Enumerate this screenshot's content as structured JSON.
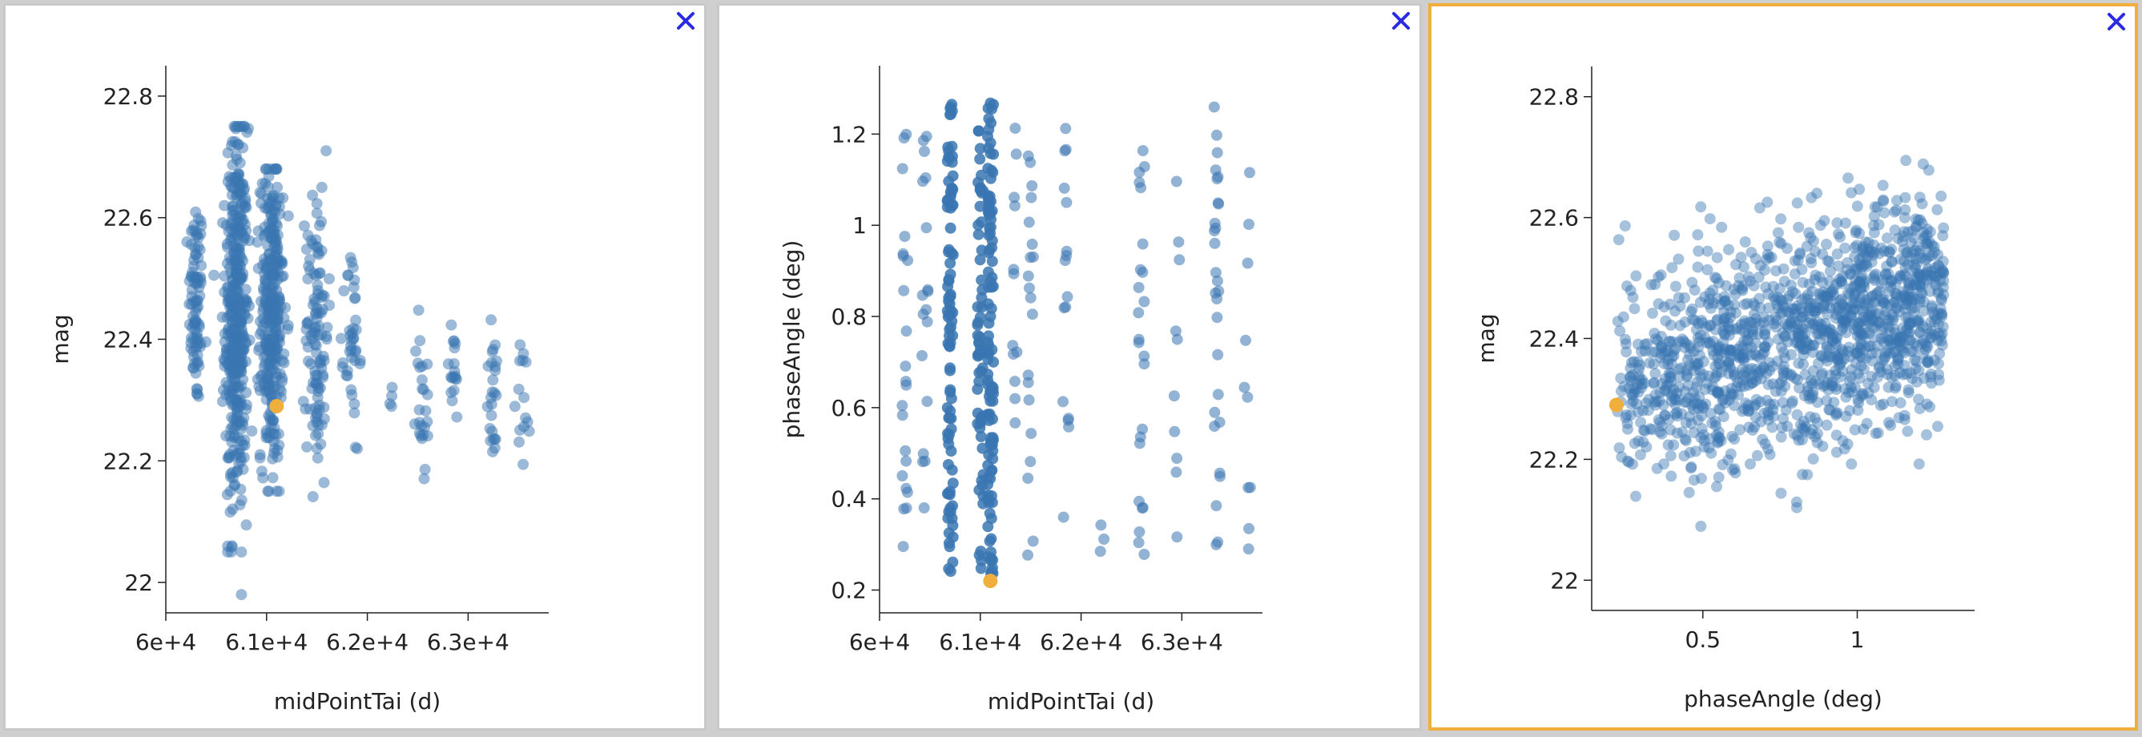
{
  "ui": {
    "close_icon": "close-x-icon",
    "close_color": "#2a2ae0",
    "selected_border_color": "#f0ae3c"
  },
  "chart_data": [
    {
      "type": "scatter",
      "xlabel": "midPointTai (d)",
      "ylabel": "mag",
      "xlim": [
        60000,
        63800
      ],
      "ylim": [
        21.95,
        22.85
      ],
      "xticks": [
        60000,
        61000,
        62000,
        63000
      ],
      "xtick_labels": [
        "6e+4",
        "6.1e+4",
        "6.2e+4",
        "6.3e+4"
      ],
      "yticks": [
        22.0,
        22.2,
        22.4,
        22.6,
        22.8
      ],
      "ytick_labels": [
        "22",
        "22.2",
        "22.4",
        "22.6",
        "22.8"
      ],
      "point_color": "#3a75b2",
      "highlight_color": "#f0ae3c",
      "highlight_point": {
        "x": 61100,
        "y": 22.29
      },
      "clusters": [
        {
          "x": 60300,
          "count": 90,
          "ymin": 22.25,
          "ymax": 22.64,
          "center": 22.46
        },
        {
          "x": 60700,
          "count": 420,
          "ymin": 22.05,
          "ymax": 22.75,
          "center": 22.43
        },
        {
          "x": 60750,
          "count": 6,
          "ymin": 21.98,
          "ymax": 22.79,
          "center": 22.43
        },
        {
          "x": 61050,
          "count": 330,
          "ymin": 22.15,
          "ymax": 22.68,
          "center": 22.44
        },
        {
          "x": 61500,
          "count": 110,
          "ymin": 22.12,
          "ymax": 22.71,
          "center": 22.42
        },
        {
          "x": 61850,
          "count": 40,
          "ymin": 22.22,
          "ymax": 22.59,
          "center": 22.38
        },
        {
          "x": 62200,
          "count": 4,
          "ymin": 22.27,
          "ymax": 22.37,
          "center": 22.31
        },
        {
          "x": 62550,
          "count": 25,
          "ymin": 22.14,
          "ymax": 22.47,
          "center": 22.3
        },
        {
          "x": 62850,
          "count": 18,
          "ymin": 22.24,
          "ymax": 22.44,
          "center": 22.34
        },
        {
          "x": 63250,
          "count": 25,
          "ymin": 22.19,
          "ymax": 22.45,
          "center": 22.31
        },
        {
          "x": 63550,
          "count": 15,
          "ymin": 22.16,
          "ymax": 22.4,
          "center": 22.3
        }
      ]
    },
    {
      "type": "scatter",
      "xlabel": "midPointTai (d)",
      "ylabel": "phaseAngle (deg)",
      "xlim": [
        60000,
        63800
      ],
      "ylim": [
        0.15,
        1.35
      ],
      "xticks": [
        60000,
        61000,
        62000,
        63000
      ],
      "xtick_labels": [
        "6e+4",
        "6.1e+4",
        "6.2e+4",
        "6.3e+4"
      ],
      "yticks": [
        0.2,
        0.4,
        0.6,
        0.8,
        1.0,
        1.2
      ],
      "ytick_labels": [
        "0.2",
        "0.4",
        "0.6",
        "0.8",
        "1",
        "1.2"
      ],
      "point_color": "#3a75b2",
      "highlight_color": "#f0ae3c",
      "highlight_point": {
        "x": 61100,
        "y": 0.22
      },
      "columns": [
        {
          "x": 60250,
          "ymin": 0.28,
          "ymax": 1.23,
          "count": 22
        },
        {
          "x": 60450,
          "ymin": 0.26,
          "ymax": 1.22,
          "count": 18
        },
        {
          "x": 60700,
          "ymin": 0.22,
          "ymax": 1.27,
          "count": 95
        },
        {
          "x": 61000,
          "ymin": 0.22,
          "ymax": 1.27,
          "count": 60
        },
        {
          "x": 61100,
          "ymin": 0.22,
          "ymax": 1.27,
          "count": 110
        },
        {
          "x": 61350,
          "ymin": 0.55,
          "ymax": 1.22,
          "count": 12
        },
        {
          "x": 61500,
          "ymin": 0.26,
          "ymax": 1.2,
          "count": 20
        },
        {
          "x": 61850,
          "ymin": 0.24,
          "ymax": 1.28,
          "count": 16
        },
        {
          "x": 62200,
          "ymin": 0.25,
          "ymax": 0.51,
          "count": 3
        },
        {
          "x": 62600,
          "ymin": 0.24,
          "ymax": 1.29,
          "count": 24
        },
        {
          "x": 62950,
          "ymin": 0.27,
          "ymax": 1.14,
          "count": 10
        },
        {
          "x": 63350,
          "ymin": 0.27,
          "ymax": 1.3,
          "count": 28
        },
        {
          "x": 63650,
          "ymin": 0.24,
          "ymax": 1.12,
          "count": 10
        }
      ]
    },
    {
      "type": "scatter",
      "xlabel": "phaseAngle (deg)",
      "ylabel": "mag",
      "xlim": [
        0.14,
        1.38
      ],
      "ylim": [
        21.95,
        22.85
      ],
      "xticks": [
        0.5,
        1.0
      ],
      "xtick_labels": [
        "0.5",
        "1"
      ],
      "yticks": [
        22.0,
        22.2,
        22.4,
        22.6,
        22.8
      ],
      "ytick_labels": [
        "22",
        "22.2",
        "22.4",
        "22.6",
        "22.8"
      ],
      "point_color": "#3a75b2",
      "highlight_color": "#f0ae3c",
      "highlight_point": {
        "x": 0.22,
        "y": 22.29
      },
      "trend": {
        "x_start": 0.22,
        "x_end": 1.28,
        "y_start": 22.32,
        "y_end": 22.47,
        "spread": 0.09,
        "count": 1400
      }
    }
  ]
}
